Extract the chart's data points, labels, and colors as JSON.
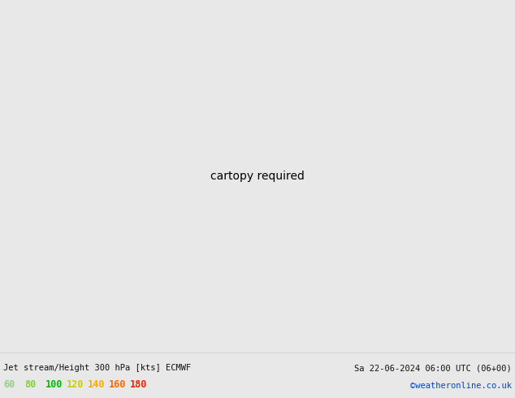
{
  "title_left": "Jet stream/Height 300 hPa [kts] ECMWF",
  "title_right": "Sa 22-06-2024 06:00 UTC (06+00)",
  "credit": "©weatheronline.co.uk",
  "legend_values": [
    "60",
    "80",
    "100",
    "120",
    "140",
    "160",
    "180"
  ],
  "legend_colors": [
    "#99cc88",
    "#88cc44",
    "#00bb00",
    "#cccc00",
    "#ffaa00",
    "#ff6600",
    "#ee2200"
  ],
  "ocean_color": "#e8e8e8",
  "land_color": "#cceeaa",
  "land_color2": "#aaddcc",
  "border_color": "#aaaaaa",
  "coast_color": "#888888",
  "bottom_bar_color": "#f0f0f0",
  "text_color": "#111111",
  "credit_color": "#0044cc",
  "figwidth": 6.34,
  "figheight": 4.9,
  "dpi": 100,
  "jet_colors": [
    "#bbeeaa",
    "#88cc66",
    "#44aa44",
    "#99cc00",
    "#ccdd00",
    "#ffee00",
    "#ffcc00",
    "#ffaa00",
    "#ff7700",
    "#ee4400"
  ],
  "jet_levels": [
    60,
    70,
    80,
    90,
    100,
    110,
    120,
    130,
    140,
    150
  ]
}
